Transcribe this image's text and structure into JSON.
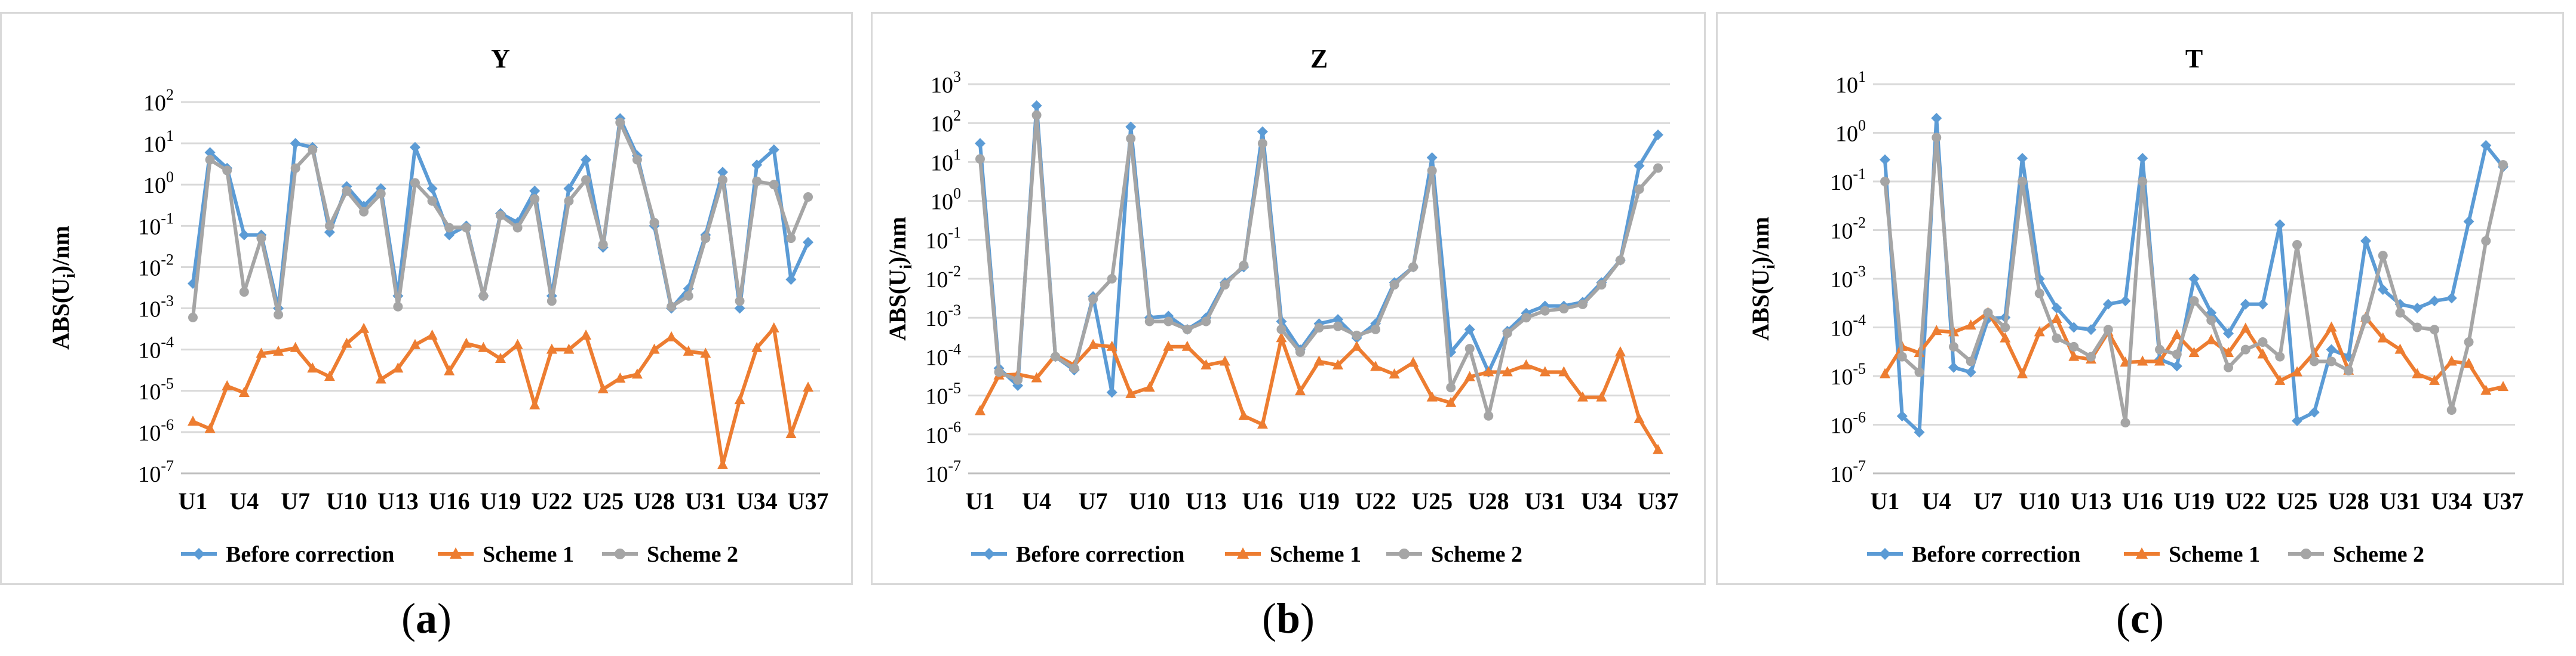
{
  "colors": {
    "before": "#5b9bd5",
    "scheme1": "#ed7d31",
    "scheme2": "#a5a5a5",
    "grid": "#d9d9d9",
    "axis": "#bfbfbf",
    "text": "#000000"
  },
  "chart_data": [
    {
      "type": "line",
      "panel_label": "a",
      "title": "Y",
      "ylabel": "ABS(U",
      "ylabel_sub": "i",
      "ylabel_tail": ")/nm",
      "yscale": "log",
      "ylim_exp": [
        -7,
        2
      ],
      "ytick_exponents": [
        "2",
        "1",
        "0",
        "-1",
        "-2",
        "-3",
        "-4",
        "-5",
        "-6",
        "-7"
      ],
      "ytick_base": "10",
      "x_tick_labels": [
        "U1",
        "U4",
        "U7",
        "U10",
        "U13",
        "U16",
        "U19",
        "U22",
        "U25",
        "U28",
        "U31",
        "U34",
        "U37"
      ],
      "series": [
        {
          "name": "Before correction",
          "marker": "diamond",
          "values": [
            0.004,
            6,
            2.5,
            0.06,
            0.06,
            0.001,
            10,
            8,
            0.07,
            0.9,
            0.3,
            0.8,
            0.002,
            8,
            0.8,
            0.06,
            0.1,
            0.002,
            0.2,
            0.12,
            0.7,
            0.002,
            0.8,
            4,
            0.03,
            40,
            5,
            0.1,
            0.001,
            0.003,
            0.06,
            2,
            0.001,
            3,
            7,
            0.005,
            0.04
          ]
        },
        {
          "name": "Scheme  1",
          "marker": "triangle",
          "values": [
            1.8e-06,
            1.2e-06,
            1.3e-05,
            9e-06,
            8e-05,
            9e-05,
            0.00011,
            3.5e-05,
            2.2e-05,
            0.00014,
            0.00032,
            1.9e-05,
            3.5e-05,
            0.00013,
            0.00022,
            3e-05,
            0.00014,
            0.00011,
            6e-05,
            0.00013,
            4.5e-06,
            0.0001,
            0.0001,
            0.00022,
            1.1e-05,
            2e-05,
            2.5e-05,
            0.0001,
            0.0002,
            9e-05,
            8e-05,
            1.6e-07,
            6e-06,
            0.00011,
            0.00033,
            9e-07,
            1.2e-05
          ]
        },
        {
          "name": "Scheme 2",
          "marker": "circle",
          "values": [
            0.0006,
            4,
            2.2,
            0.0025,
            0.05,
            0.0007,
            2.5,
            7,
            0.1,
            0.7,
            0.22,
            0.6,
            0.0011,
            1.1,
            0.4,
            0.09,
            0.09,
            0.002,
            0.18,
            0.09,
            0.45,
            0.0015,
            0.4,
            1.3,
            0.035,
            32,
            4,
            0.12,
            0.0011,
            0.002,
            0.05,
            1.3,
            0.0015,
            1.2,
            1,
            0.05,
            0.5
          ]
        }
      ]
    },
    {
      "type": "line",
      "panel_label": "b",
      "title": "Z",
      "ylabel": "ABS(U",
      "ylabel_sub": "i",
      "ylabel_tail": ")/nm",
      "yscale": "log",
      "ylim_exp": [
        -7,
        3
      ],
      "ytick_exponents": [
        "3",
        "2",
        "1",
        "0",
        "-1",
        "-2",
        "-3",
        "-4",
        "-5",
        "-6",
        "-7"
      ],
      "ytick_base": "10",
      "x_tick_labels": [
        "U1",
        "U4",
        "U7",
        "U10",
        "U13",
        "U16",
        "U19",
        "U22",
        "U25",
        "U28",
        "U31",
        "U34",
        "U37"
      ],
      "series": [
        {
          "name": "Before correction",
          "marker": "diamond",
          "values": [
            30,
            5e-05,
            1.8e-05,
            280,
            0.0001,
            4.5e-05,
            0.0035,
            1.2e-05,
            80,
            0.001,
            0.0011,
            0.0005,
            0.001,
            0.008,
            0.02,
            60,
            0.0008,
            0.00015,
            0.0007,
            0.0009,
            0.0003,
            0.0007,
            0.008,
            0.02,
            13,
            0.00013,
            0.0005,
            4e-05,
            0.00045,
            0.0013,
            0.002,
            0.002,
            0.0025,
            0.008,
            0.03,
            8,
            50
          ]
        },
        {
          "name": "Scheme  1",
          "marker": "triangle",
          "values": [
            4e-06,
            3.3e-05,
            3.5e-05,
            2.8e-05,
            0.00011,
            6e-05,
            0.0002,
            0.00018,
            1.1e-05,
            1.6e-05,
            0.00018,
            0.00018,
            6e-05,
            7.5e-05,
            3e-06,
            1.8e-06,
            0.0003,
            1.3e-05,
            7.5e-05,
            6e-05,
            0.00018,
            5.5e-05,
            3.5e-05,
            7e-05,
            9e-06,
            6.5e-06,
            3e-05,
            4e-05,
            4e-05,
            6e-05,
            4e-05,
            4e-05,
            9e-06,
            9e-06,
            0.00013,
            2.5e-06,
            4e-07
          ]
        },
        {
          "name": "Scheme 2",
          "marker": "circle",
          "values": [
            12,
            4e-05,
            2.5e-05,
            160,
            0.0001,
            5e-05,
            0.003,
            0.01,
            40,
            0.0008,
            0.0008,
            0.0005,
            0.0008,
            0.007,
            0.022,
            30,
            0.0005,
            0.00013,
            0.00055,
            0.0006,
            0.00035,
            0.0005,
            0.007,
            0.02,
            6,
            1.6e-05,
            0.00016,
            3e-06,
            0.0004,
            0.001,
            0.0015,
            0.0017,
            0.0022,
            0.007,
            0.03,
            2,
            7
          ]
        }
      ]
    },
    {
      "type": "line",
      "panel_label": "c",
      "title": "T",
      "ylabel": "ABS(U",
      "ylabel_sub": "i",
      "ylabel_tail": ")/nm",
      "yscale": "log",
      "ylim_exp": [
        -7,
        1
      ],
      "ytick_exponents": [
        "1",
        "0",
        "-1",
        "-2",
        "-3",
        "-4",
        "-5",
        "-6",
        "-7"
      ],
      "ytick_base": "10",
      "x_tick_labels": [
        "U1",
        "U4",
        "U7",
        "U10",
        "U13",
        "U16",
        "U19",
        "U22",
        "U25",
        "U28",
        "U31",
        "U34",
        "U37"
      ],
      "series": [
        {
          "name": "Before correction",
          "marker": "diamond",
          "values": [
            0.28,
            1.5e-06,
            7e-07,
            2,
            1.5e-05,
            1.2e-05,
            0.00015,
            0.00016,
            0.3,
            0.001,
            0.00025,
            0.0001,
            9e-05,
            0.0003,
            0.00035,
            0.3,
            2.2e-05,
            1.6e-05,
            0.001,
            0.0002,
            7.5e-05,
            0.0003,
            0.0003,
            0.013,
            1.2e-06,
            1.8e-06,
            3.5e-05,
            2.5e-05,
            0.006,
            0.0006,
            0.0003,
            0.00025,
            0.00035,
            0.0004,
            0.015,
            0.55,
            0.2
          ]
        },
        {
          "name": "Scheme  1",
          "marker": "triangle",
          "values": [
            1.1e-05,
            4e-05,
            3e-05,
            8.5e-05,
            8e-05,
            0.00011,
            0.0002,
            6e-05,
            1.1e-05,
            8e-05,
            0.00015,
            2.5e-05,
            2.2e-05,
            8e-05,
            1.9e-05,
            2e-05,
            2e-05,
            7e-05,
            3e-05,
            5.5e-05,
            3e-05,
            9.5e-05,
            2.8e-05,
            8e-06,
            1.2e-05,
            3e-05,
            0.0001,
            1.3e-05,
            0.00016,
            6e-05,
            3.5e-05,
            1.1e-05,
            8e-06,
            2e-05,
            1.8e-05,
            5e-06,
            6e-06
          ]
        },
        {
          "name": "Scheme 2",
          "marker": "circle",
          "values": [
            0.1,
            2.5e-05,
            1.2e-05,
            0.8,
            4e-05,
            2e-05,
            0.0002,
            0.0001,
            0.1,
            0.0005,
            6e-05,
            4e-05,
            2.5e-05,
            9e-05,
            1.1e-06,
            0.1,
            3.5e-05,
            2.8e-05,
            0.00035,
            0.00014,
            1.5e-05,
            3.5e-05,
            5e-05,
            2.5e-05,
            0.005,
            2e-05,
            2e-05,
            1.3e-05,
            0.00015,
            0.003,
            0.0002,
            0.0001,
            9e-05,
            2e-06,
            5e-05,
            0.006,
            0.22
          ]
        }
      ]
    }
  ]
}
